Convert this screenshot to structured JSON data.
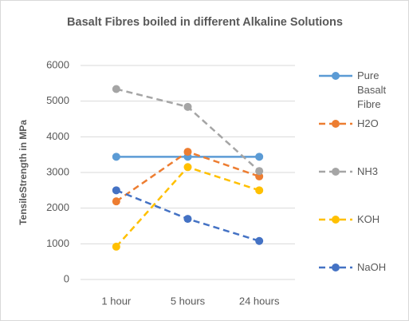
{
  "chart_data": {
    "type": "line",
    "title": "Basalt Fibres boiled in different Alkaline Solutions",
    "y_label": "TensileStrength in MPa",
    "categories": [
      "1 hour",
      "5 hours",
      "24 hours"
    ],
    "series": [
      {
        "name": "Pure Basalt Fibre",
        "color": "#5b9bd5",
        "dashed": false,
        "values": [
          3440,
          3440,
          3440
        ]
      },
      {
        "name": "H2O",
        "color": "#ed7d31",
        "dashed": true,
        "values": [
          2190,
          3580,
          2890
        ]
      },
      {
        "name": "NH3",
        "color": "#a5a5a5",
        "dashed": true,
        "values": [
          5340,
          4840,
          3040
        ]
      },
      {
        "name": "KOH",
        "color": "#ffc000",
        "dashed": true,
        "values": [
          920,
          3150,
          2500
        ]
      },
      {
        "name": "NaOH",
        "color": "#4472c4",
        "dashed": true,
        "values": [
          2500,
          1700,
          1080
        ]
      }
    ],
    "ylim": [
      0,
      6000
    ],
    "yticks": [
      0,
      1000,
      2000,
      3000,
      4000,
      5000,
      6000
    ],
    "grid": true
  }
}
